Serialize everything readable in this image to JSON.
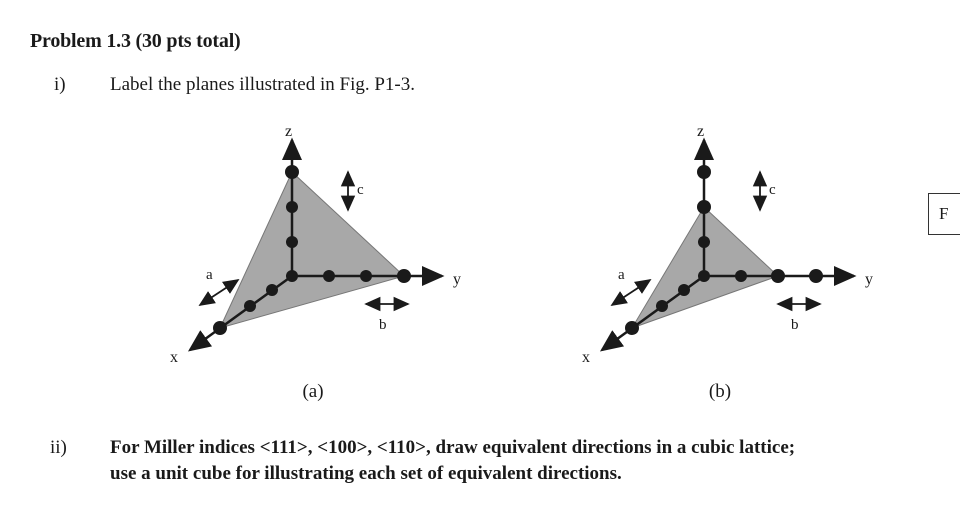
{
  "problem": {
    "title": "Problem 1.3 (30 pts total)"
  },
  "part_i": {
    "number": "i)",
    "text": "Label the planes illustrated in Fig. P1-3."
  },
  "figures": {
    "a": {
      "caption": "(a)",
      "axis_z": "z",
      "axis_y": "y",
      "axis_x": "x",
      "label_a": "a",
      "label_b": "b",
      "label_c": "c"
    },
    "b": {
      "caption": "(b)",
      "axis_z": "z",
      "axis_y": "y",
      "axis_x": "x",
      "label_a": "a",
      "label_b": "b",
      "label_c": "c"
    }
  },
  "side_box": {
    "text": "F"
  },
  "part_ii": {
    "number": "ii)",
    "line1": "For Miller indices <111>, <100>, <110>, draw equivalent directions in a cubic lattice;",
    "line2": "use a unit cube for illustrating each set of equivalent directions."
  },
  "colors": {
    "plane_fill": "#a8a8a8",
    "ink": "#1a1a1a"
  }
}
